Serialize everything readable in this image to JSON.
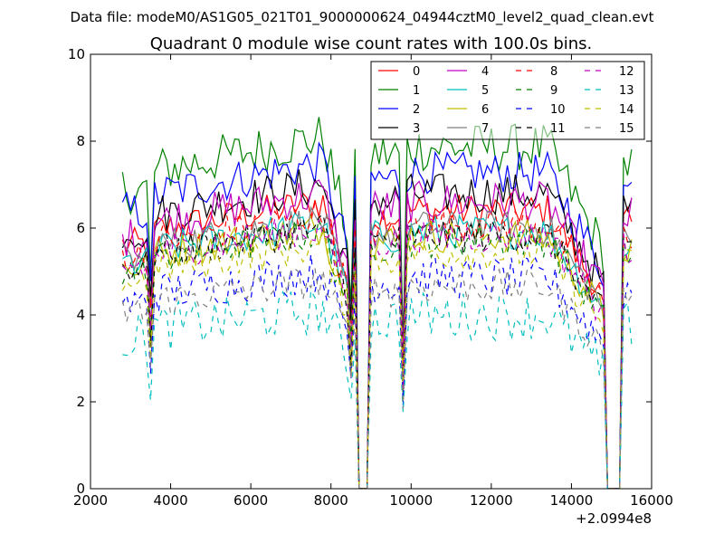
{
  "chart_data": {
    "type": "line",
    "suptitle": "Data file: modeM0/AS1G05_021T01_9000000624_04944cztM0_level2_quad_clean.evt",
    "title": "Quadrant 0 module wise count rates with 100.0s bins.",
    "xlabel": "",
    "ylabel": "",
    "xlim": [
      2000,
      16000
    ],
    "ylim": [
      0,
      10
    ],
    "x_offset_label": "+2.0994e8",
    "xticks": [
      "2000",
      "4000",
      "6000",
      "8000",
      "10000",
      "12000",
      "14000",
      "16000"
    ],
    "yticks": [
      "0",
      "2",
      "4",
      "6",
      "8",
      "10"
    ],
    "legend_position": "top-right",
    "legend_columns": 4,
    "x_start": 2800,
    "x_step": 100,
    "gap_points": [
      [
        8700,
        0
      ],
      [
        8900,
        0
      ],
      [
        14900,
        0
      ],
      [
        15200,
        0
      ]
    ],
    "series": [
      {
        "name": "0",
        "color": "#ff0000",
        "style": "solid",
        "level": 6.6,
        "noise": 0.25
      },
      {
        "name": "1",
        "color": "#008000",
        "style": "solid",
        "level": 8.1,
        "noise": 0.35
      },
      {
        "name": "2",
        "color": "#0000ff",
        "style": "solid",
        "level": 7.5,
        "noise": 0.3
      },
      {
        "name": "3",
        "color": "#000000",
        "style": "solid",
        "level": 7.0,
        "noise": 0.3
      },
      {
        "name": "4",
        "color": "#bf00bf",
        "style": "solid",
        "level": 6.8,
        "noise": 0.3
      },
      {
        "name": "5",
        "color": "#00bfbf",
        "style": "solid",
        "level": 6.1,
        "noise": 0.25
      },
      {
        "name": "6",
        "color": "#bfbf00",
        "style": "solid",
        "level": 6.0,
        "noise": 0.25
      },
      {
        "name": "7",
        "color": "#808080",
        "style": "solid",
        "level": 6.2,
        "noise": 0.25
      },
      {
        "name": "8",
        "color": "#ff0000",
        "style": "dashed",
        "level": 6.3,
        "noise": 0.25
      },
      {
        "name": "9",
        "color": "#008000",
        "style": "dashed",
        "level": 5.9,
        "noise": 0.25
      },
      {
        "name": "10",
        "color": "#0000ff",
        "style": "dashed",
        "level": 5.0,
        "noise": 0.3
      },
      {
        "name": "11",
        "color": "#000000",
        "style": "dashed",
        "level": 6.0,
        "noise": 0.25
      },
      {
        "name": "12",
        "color": "#bf00bf",
        "style": "dashed",
        "level": 6.0,
        "noise": 0.25
      },
      {
        "name": "13",
        "color": "#00bfbf",
        "style": "dashed",
        "level": 4.1,
        "noise": 0.35
      },
      {
        "name": "14",
        "color": "#bfbf00",
        "style": "dashed",
        "level": 5.6,
        "noise": 0.25
      },
      {
        "name": "15",
        "color": "#808080",
        "style": "dashed",
        "level": 4.8,
        "noise": 0.25
      }
    ]
  }
}
